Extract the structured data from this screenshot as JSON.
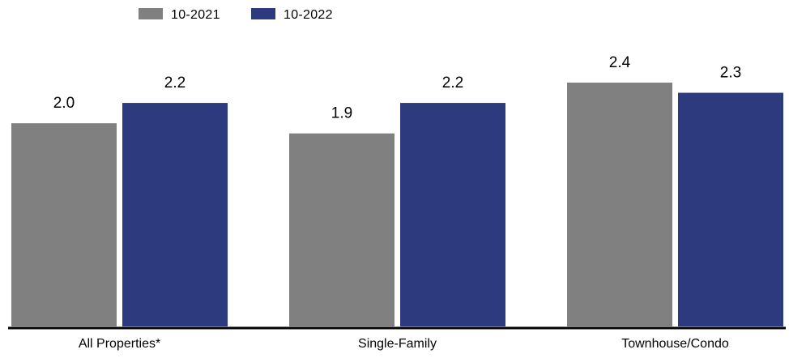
{
  "chart_data": {
    "type": "bar",
    "categories": [
      "All Properties*",
      "Single-Family",
      "Townhouse/Condo"
    ],
    "series": [
      {
        "name": "10-2021",
        "values": [
          2.0,
          1.9,
          2.4
        ],
        "color": "#808080"
      },
      {
        "name": "10-2022",
        "values": [
          2.2,
          2.2,
          2.3
        ],
        "color": "#2E3A7E"
      }
    ],
    "ylim": [
      0,
      2.4
    ],
    "grid": false,
    "legend_position": "top-left",
    "axis_color": "#000000"
  }
}
